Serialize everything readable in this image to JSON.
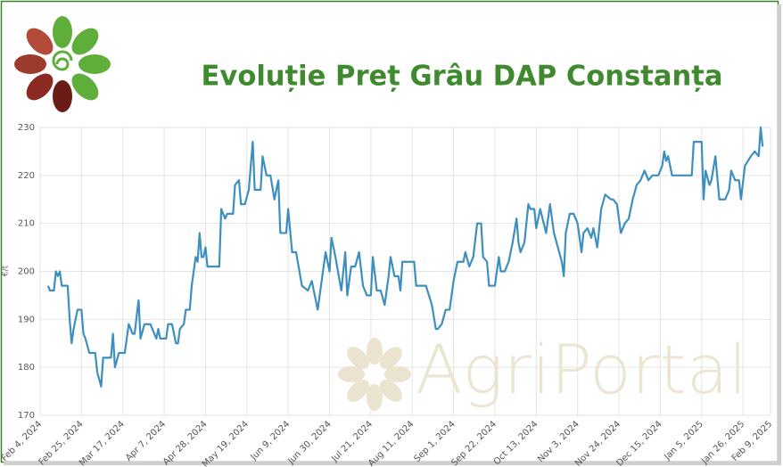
{
  "chart_data": {
    "type": "line",
    "title": "Evoluție Preț Grâu DAP Constanța",
    "y_label": "€/t",
    "watermark": "AgriPortal",
    "ylim": [
      170,
      230
    ],
    "yticks": [
      170,
      180,
      190,
      200,
      210,
      220,
      230
    ],
    "xlim": [
      "2024-02-04",
      "2025-02-09"
    ],
    "xticks": [
      {
        "value": "2024-02-04",
        "label": "Feb 4, 2024"
      },
      {
        "value": "2024-02-25",
        "label": "Feb 25, 2024"
      },
      {
        "value": "2024-03-17",
        "label": "Mar 17, 2024"
      },
      {
        "value": "2024-04-07",
        "label": "Apr 7, 2024"
      },
      {
        "value": "2024-04-28",
        "label": "Apr 28, 2024"
      },
      {
        "value": "2024-05-19",
        "label": "May 19, 2024"
      },
      {
        "value": "2024-06-09",
        "label": "Jun 9, 2024"
      },
      {
        "value": "2024-06-30",
        "label": "Jun 30, 2024"
      },
      {
        "value": "2024-07-21",
        "label": "Jul 21, 2024"
      },
      {
        "value": "2024-08-11",
        "label": "Aug 11, 2024"
      },
      {
        "value": "2024-09-01",
        "label": "Sep 1, 2024"
      },
      {
        "value": "2024-09-22",
        "label": "Sep 22, 2024"
      },
      {
        "value": "2024-10-13",
        "label": "Oct 13, 2024"
      },
      {
        "value": "2024-11-03",
        "label": "Nov 3, 2024"
      },
      {
        "value": "2024-11-24",
        "label": "Nov 24, 2024"
      },
      {
        "value": "2024-12-15",
        "label": "Dec 15, 2024"
      },
      {
        "value": "2025-01-05",
        "label": "Jan 5, 2025"
      },
      {
        "value": "2025-01-26",
        "label": "Jan 26, 2025"
      },
      {
        "value": "2025-02-09",
        "label": "Feb 9, 2025"
      }
    ],
    "grid": true,
    "color": "#3d8fc0",
    "x": [
      "2024-02-08",
      "2024-02-09",
      "2024-02-11",
      "2024-02-12",
      "2024-02-13",
      "2024-02-14",
      "2024-02-15",
      "2024-02-18",
      "2024-02-19",
      "2024-02-20",
      "2024-02-21",
      "2024-02-23",
      "2024-02-25",
      "2024-02-26",
      "2024-02-27",
      "2024-02-29",
      "2024-03-03",
      "2024-03-04",
      "2024-03-06",
      "2024-03-07",
      "2024-03-11",
      "2024-03-12",
      "2024-03-13",
      "2024-03-15",
      "2024-03-18",
      "2024-03-20",
      "2024-03-22",
      "2024-03-23",
      "2024-03-25",
      "2024-03-26",
      "2024-03-28",
      "2024-03-31",
      "2024-04-03",
      "2024-04-04",
      "2024-04-05",
      "2024-04-08",
      "2024-04-09",
      "2024-04-11",
      "2024-04-13",
      "2024-04-14",
      "2024-04-15",
      "2024-04-17",
      "2024-04-18",
      "2024-04-20",
      "2024-04-21",
      "2024-04-23",
      "2024-04-24",
      "2024-04-25",
      "2024-04-26",
      "2024-04-27",
      "2024-04-28",
      "2024-04-29",
      "2024-05-05",
      "2024-05-06",
      "2024-05-08",
      "2024-05-09",
      "2024-05-12",
      "2024-05-13",
      "2024-05-15",
      "2024-05-16",
      "2024-05-18",
      "2024-05-20",
      "2024-05-22",
      "2024-05-23",
      "2024-05-26",
      "2024-05-27",
      "2024-05-29",
      "2024-05-31",
      "2024-06-02",
      "2024-06-04",
      "2024-06-05",
      "2024-06-08",
      "2024-06-09",
      "2024-06-11",
      "2024-06-13",
      "2024-06-16",
      "2024-06-19",
      "2024-06-21",
      "2024-06-23",
      "2024-06-24",
      "2024-06-26",
      "2024-06-28",
      "2024-06-30",
      "2024-07-01",
      "2024-07-03",
      "2024-07-06",
      "2024-07-07",
      "2024-07-08",
      "2024-07-09",
      "2024-07-11",
      "2024-07-13",
      "2024-07-15",
      "2024-07-17",
      "2024-07-19",
      "2024-07-21",
      "2024-07-22",
      "2024-07-24",
      "2024-07-26",
      "2024-07-28",
      "2024-07-30",
      "2024-07-31",
      "2024-08-02",
      "2024-08-04",
      "2024-08-05",
      "2024-08-06",
      "2024-08-12",
      "2024-08-13",
      "2024-08-18",
      "2024-08-21",
      "2024-08-23",
      "2024-08-24",
      "2024-08-26",
      "2024-08-28",
      "2024-08-30",
      "2024-09-01",
      "2024-09-03",
      "2024-09-06",
      "2024-09-07",
      "2024-09-09",
      "2024-09-11",
      "2024-09-13",
      "2024-09-15",
      "2024-09-16",
      "2024-09-18",
      "2024-09-19",
      "2024-09-22",
      "2024-09-24",
      "2024-09-25",
      "2024-09-27",
      "2024-09-29",
      "2024-10-01",
      "2024-10-03",
      "2024-10-04",
      "2024-10-05",
      "2024-10-07",
      "2024-10-09",
      "2024-10-10",
      "2024-10-12",
      "2024-10-13",
      "2024-10-15",
      "2024-10-18",
      "2024-10-20",
      "2024-10-22",
      "2024-10-24",
      "2024-10-26",
      "2024-10-27",
      "2024-10-28",
      "2024-10-30",
      "2024-11-01",
      "2024-11-03",
      "2024-11-05",
      "2024-11-06",
      "2024-11-08",
      "2024-11-10",
      "2024-11-11",
      "2024-11-13",
      "2024-11-15",
      "2024-11-17",
      "2024-11-20",
      "2024-11-21",
      "2024-11-23",
      "2024-11-25",
      "2024-11-27",
      "2024-11-29",
      "2024-12-01",
      "2024-12-03",
      "2024-12-05",
      "2024-12-07",
      "2024-12-09",
      "2024-12-11",
      "2024-12-14",
      "2024-12-16",
      "2024-12-17",
      "2024-12-18",
      "2024-12-19",
      "2024-12-21",
      "2024-12-31",
      "2025-01-01",
      "2025-01-05",
      "2025-01-06",
      "2025-01-07",
      "2025-01-09",
      "2025-01-10",
      "2025-01-12",
      "2025-01-14",
      "2025-01-17",
      "2025-01-19",
      "2025-01-20",
      "2025-01-22",
      "2025-01-24",
      "2025-01-25",
      "2025-01-27",
      "2025-01-30",
      "2025-02-01",
      "2025-02-03",
      "2025-02-04",
      "2025-02-05"
    ],
    "values": [
      197,
      196,
      196,
      200,
      199,
      200,
      197,
      197,
      190,
      185,
      188,
      192,
      192,
      187,
      186,
      183,
      183,
      179,
      176,
      182,
      182,
      187,
      180,
      183,
      183,
      189,
      187,
      187,
      194,
      186,
      189,
      189,
      186,
      188,
      186,
      186,
      189,
      189,
      185,
      185,
      188,
      189,
      192,
      192,
      197,
      203,
      202,
      208,
      203,
      203,
      205,
      201,
      201,
      213,
      211,
      212,
      212,
      218,
      219,
      214,
      214,
      217,
      227,
      217,
      217,
      224,
      220,
      220,
      215,
      219,
      208,
      208,
      213,
      204,
      204,
      197,
      196,
      198,
      194,
      192,
      198,
      204,
      200,
      207,
      203,
      196,
      200,
      204,
      195,
      201,
      201,
      204,
      197,
      195,
      195,
      203,
      196,
      196,
      193,
      199,
      203,
      199,
      199,
      196,
      202,
      202,
      197,
      197,
      193,
      188,
      188,
      189,
      192,
      192,
      198,
      202,
      202,
      204,
      201,
      203,
      210,
      210,
      203,
      202,
      197,
      197,
      203,
      200,
      200,
      202,
      206,
      211,
      206,
      204,
      206,
      214,
      213,
      213,
      209,
      213,
      208,
      214,
      208,
      205,
      202,
      199,
      208,
      212,
      212,
      210,
      204,
      208,
      209,
      207,
      209,
      205,
      213,
      216,
      215,
      215,
      214,
      208,
      210,
      211,
      215,
      218,
      219,
      221,
      219,
      220,
      220,
      222,
      225,
      223,
      224,
      220,
      220,
      227,
      227,
      215,
      221,
      218,
      219,
      224,
      215,
      215,
      217,
      221,
      219,
      219,
      215,
      222,
      224,
      225,
      224,
      230,
      226
    ]
  }
}
